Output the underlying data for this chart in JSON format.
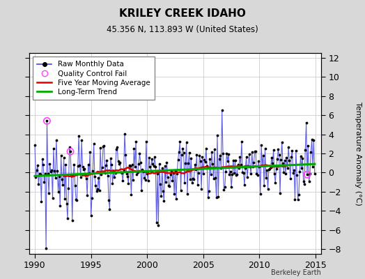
{
  "title": "KRILEY CREEK IDAHO",
  "subtitle": "45.356 N, 113.893 W (United States)",
  "ylabel": "Temperature Anomaly (°C)",
  "credit": "Berkeley Earth",
  "xlim": [
    1989.5,
    2015.5
  ],
  "ylim": [
    -8.5,
    12.5
  ],
  "yticks": [
    -8,
    -6,
    -4,
    -2,
    0,
    2,
    4,
    6,
    8,
    10,
    12
  ],
  "xticks": [
    1990,
    1995,
    2000,
    2005,
    2010,
    2015
  ],
  "bg_color": "#d8d8d8",
  "plot_bg_color": "#ffffff",
  "raw_color": "#4444dd",
  "avg_color": "#dd0000",
  "trend_color": "#00aa00",
  "qc_color": "#ff44ff",
  "seed": 7
}
